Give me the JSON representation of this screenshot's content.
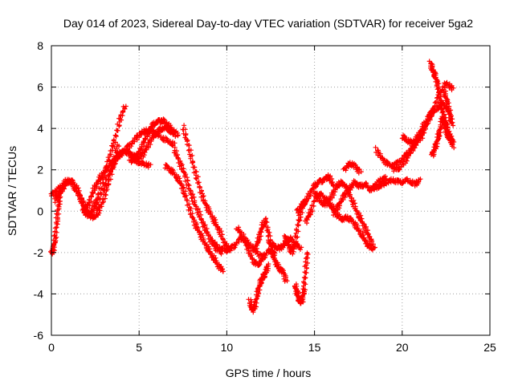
{
  "chart_data": {
    "type": "scatter",
    "title": "Day 014 of 2023, Sidereal Day-to-day VTEC variation (SDTVAR) for receiver 5ga2",
    "xlabel": "GPS time / hours",
    "ylabel": "SDTVAR / TECUs",
    "xlim": [
      0,
      25
    ],
    "ylim": [
      -6,
      8
    ],
    "xticks": [
      "0",
      "5",
      "10",
      "15",
      "20",
      "25"
    ],
    "yticks": [
      "-6",
      "-4",
      "-2",
      "0",
      "2",
      "4",
      "6",
      "8"
    ],
    "grid": true,
    "marker": "+",
    "color": "#ff0000",
    "series": [
      {
        "name": "trace-1",
        "x": [
          0.0,
          0.1,
          0.2,
          0.3,
          0.4,
          0.5
        ],
        "y": [
          -2.0,
          -1.9,
          -1.4,
          -0.6,
          0.2,
          0.9
        ]
      },
      {
        "name": "trace-2",
        "x": [
          0.0,
          0.3,
          0.6,
          0.9,
          1.2,
          1.5,
          1.8,
          2.0,
          2.3,
          2.6,
          3.0,
          3.3,
          3.6,
          3.9,
          4.2
        ],
        "y": [
          0.8,
          1.0,
          1.2,
          1.5,
          1.3,
          0.9,
          0.3,
          -0.2,
          0.0,
          0.6,
          1.6,
          2.6,
          3.4,
          4.4,
          5.1
        ]
      },
      {
        "name": "trace-3",
        "x": [
          0.2,
          0.5,
          0.8,
          1.1,
          1.4,
          1.7,
          2.0,
          2.3,
          2.6,
          2.9,
          3.2,
          3.5,
          3.8
        ],
        "y": [
          0.5,
          0.9,
          1.3,
          1.5,
          1.2,
          0.6,
          0.0,
          -0.3,
          -0.2,
          0.4,
          1.2,
          2.2,
          3.2
        ]
      },
      {
        "name": "trace-4",
        "x": [
          1.8,
          2.1,
          2.4,
          2.7,
          3.0,
          3.3,
          3.6,
          3.9,
          4.2,
          4.5,
          4.8,
          5.1,
          5.4,
          5.7,
          6.0,
          6.3,
          6.6,
          7.0
        ],
        "y": [
          0.0,
          0.3,
          1.0,
          1.5,
          1.9,
          2.2,
          2.5,
          2.8,
          2.9,
          2.8,
          2.6,
          2.6,
          3.0,
          3.5,
          3.8,
          4.0,
          4.0,
          3.7
        ]
      },
      {
        "name": "trace-5",
        "x": [
          2.2,
          2.6,
          3.0,
          3.4,
          3.8,
          4.2,
          4.6,
          5.0,
          5.4,
          5.8,
          6.2,
          6.6,
          7.0
        ],
        "y": [
          -0.2,
          0.3,
          1.2,
          2.0,
          2.6,
          3.0,
          3.3,
          3.7,
          3.9,
          3.9,
          3.6,
          3.4,
          3.2
        ]
      },
      {
        "name": "trace-6",
        "x": [
          4.5,
          4.8,
          5.1,
          5.4,
          5.7,
          6.0,
          6.3,
          6.6,
          6.9,
          7.2
        ],
        "y": [
          2.4,
          2.6,
          3.0,
          3.6,
          4.1,
          4.3,
          4.4,
          4.2,
          3.9,
          3.7
        ]
      },
      {
        "name": "trace-7",
        "x": [
          4.5,
          4.8,
          5.2,
          5.6
        ],
        "y": [
          2.6,
          2.4,
          2.3,
          2.2
        ]
      },
      {
        "name": "trace-8",
        "x": [
          6.5,
          6.8,
          7.1,
          7.4,
          7.7,
          8.0,
          8.3,
          8.6,
          8.9,
          9.2,
          9.5,
          9.8
        ],
        "y": [
          2.2,
          2.0,
          1.7,
          1.3,
          0.6,
          -0.2,
          -0.8,
          -1.3,
          -1.8,
          -2.2,
          -2.6,
          -2.9
        ]
      },
      {
        "name": "trace-9",
        "x": [
          7.0,
          7.3,
          7.6,
          7.9,
          8.2,
          8.5,
          8.8,
          9.1,
          9.4,
          9.7
        ],
        "y": [
          3.0,
          2.4,
          1.8,
          1.0,
          0.3,
          -0.3,
          -0.9,
          -1.4,
          -1.8,
          -2.0
        ]
      },
      {
        "name": "trace-10",
        "x": [
          7.5,
          7.8,
          8.1,
          8.4,
          8.7,
          9.0,
          9.3,
          9.6,
          9.9,
          10.2
        ],
        "y": [
          4.1,
          3.2,
          2.2,
          1.3,
          0.5,
          0.0,
          -0.5,
          -1.0,
          -1.6,
          -1.9
        ]
      },
      {
        "name": "trace-11",
        "x": [
          9.2,
          9.6,
          10.0,
          10.4,
          10.8,
          11.2,
          11.6,
          12.0
        ],
        "y": [
          -1.5,
          -1.8,
          -1.9,
          -1.7,
          -1.3,
          -1.5,
          -1.9,
          -2.2
        ]
      },
      {
        "name": "trace-12",
        "x": [
          10.6,
          10.9,
          11.2,
          11.5,
          11.8,
          12.1,
          12.4,
          12.7
        ],
        "y": [
          -0.8,
          -1.2,
          -1.8,
          -2.4,
          -2.6,
          -2.2,
          -1.9,
          -2.1
        ]
      },
      {
        "name": "trace-13",
        "x": [
          11.3,
          11.45,
          11.6,
          11.75,
          11.9,
          12.05,
          12.2,
          12.35
        ],
        "y": [
          -4.3,
          -4.8,
          -4.6,
          -4.0,
          -3.5,
          -3.2,
          -3.0,
          -2.6
        ]
      },
      {
        "name": "trace-14",
        "x": [
          11.6,
          11.8,
          12.0,
          12.2,
          12.4,
          12.6,
          12.8,
          13.0,
          13.2,
          13.4
        ],
        "y": [
          -1.9,
          -1.4,
          -0.8,
          -0.4,
          -1.2,
          -2.0,
          -2.5,
          -2.8,
          -2.9,
          -3.4
        ]
      },
      {
        "name": "trace-15",
        "x": [
          12.4,
          12.7,
          13.0,
          13.3,
          13.6,
          13.9,
          14.2
        ],
        "y": [
          -1.5,
          -1.7,
          -1.8,
          -1.6,
          -1.3,
          -1.6,
          -1.8
        ]
      },
      {
        "name": "trace-16",
        "x": [
          13.3,
          13.5,
          13.7,
          13.9,
          14.1,
          14.3,
          14.5
        ],
        "y": [
          -1.2,
          -1.6,
          -2.0,
          -1.5,
          -0.5,
          0.2,
          0.5
        ]
      },
      {
        "name": "trace-17",
        "x": [
          13.9,
          14.0,
          14.1,
          14.2,
          14.3,
          14.4,
          14.5,
          14.6
        ],
        "y": [
          -3.6,
          -3.9,
          -4.2,
          -4.4,
          -4.3,
          -3.8,
          -2.8,
          -2.0
        ]
      },
      {
        "name": "trace-18",
        "x": [
          14.0,
          14.3,
          14.6,
          14.9,
          15.2,
          15.5,
          15.8,
          16.1
        ],
        "y": [
          0.0,
          0.3,
          0.6,
          1.1,
          1.4,
          1.5,
          1.7,
          1.2
        ]
      },
      {
        "name": "trace-19",
        "x": [
          14.5,
          14.8,
          15.1,
          15.4,
          15.7,
          16.0,
          16.3,
          16.6,
          16.9,
          17.2,
          17.5,
          17.8,
          18.1,
          18.4
        ],
        "y": [
          -0.5,
          0.0,
          0.8,
          0.8,
          0.5,
          0.2,
          -0.2,
          -0.4,
          -0.3,
          -0.5,
          -0.9,
          -1.3,
          -1.7,
          -1.8
        ]
      },
      {
        "name": "trace-20",
        "x": [
          15.0,
          15.3,
          15.6,
          15.9,
          16.2,
          16.5,
          16.8,
          17.1,
          17.4,
          17.7,
          18.0,
          18.3
        ],
        "y": [
          0.9,
          0.5,
          0.3,
          0.6,
          1.1,
          1.4,
          1.2,
          0.6,
          0.0,
          -0.5,
          -1.0,
          -1.6
        ]
      },
      {
        "name": "trace-21",
        "x": [
          16.1,
          16.4,
          16.7,
          17.0,
          17.3,
          17.6,
          17.9,
          18.2,
          18.5,
          18.8,
          19.1
        ],
        "y": [
          -0.1,
          0.3,
          0.8,
          1.1,
          1.4,
          1.2,
          1.3,
          1.0,
          1.3,
          1.5,
          1.6
        ]
      },
      {
        "name": "trace-22",
        "x": [
          16.7,
          17.0,
          17.3,
          17.6
        ],
        "y": [
          2.0,
          2.3,
          2.2,
          1.9
        ]
      },
      {
        "name": "trace-23",
        "x": [
          18.3,
          18.7,
          19.1,
          19.5,
          19.9,
          20.3,
          20.7,
          21.0
        ],
        "y": [
          1.1,
          1.2,
          1.4,
          1.5,
          1.4,
          1.5,
          1.3,
          1.5
        ]
      },
      {
        "name": "trace-24",
        "x": [
          18.5,
          18.9,
          19.3,
          19.7,
          20.1,
          20.5,
          20.9,
          21.3,
          21.7,
          22.1,
          22.5,
          22.9
        ],
        "y": [
          3.0,
          2.5,
          2.2,
          2.3,
          2.6,
          3.0,
          3.4,
          4.0,
          4.8,
          5.6,
          6.2,
          5.9
        ]
      },
      {
        "name": "trace-25",
        "x": [
          19.5,
          19.9,
          20.3,
          20.7,
          21.1,
          21.5,
          21.9,
          22.3,
          22.7
        ],
        "y": [
          2.0,
          2.1,
          2.6,
          3.2,
          3.6,
          4.5,
          4.9,
          5.2,
          4.8
        ]
      },
      {
        "name": "trace-26",
        "x": [
          20.0,
          20.3,
          20.6,
          20.9,
          21.2,
          21.5,
          21.8
        ],
        "y": [
          3.6,
          3.4,
          3.3,
          3.6,
          4.1,
          4.5,
          5.0
        ]
      },
      {
        "name": "trace-27",
        "x": [
          21.6,
          21.75,
          21.9,
          22.05,
          22.2,
          22.35,
          22.5,
          22.7,
          22.9
        ],
        "y": [
          7.2,
          6.8,
          6.5,
          6.0,
          5.2,
          4.6,
          4.2,
          3.7,
          3.1
        ]
      },
      {
        "name": "trace-28",
        "x": [
          21.7,
          21.85,
          22.0,
          22.15,
          22.3,
          22.45,
          22.6,
          22.75,
          22.9
        ],
        "y": [
          2.7,
          3.0,
          3.4,
          3.9,
          4.5,
          4.1,
          3.6,
          3.5,
          3.3
        ]
      },
      {
        "name": "trace-29",
        "x": [
          22.4,
          22.55,
          22.7,
          22.85
        ],
        "y": [
          5.8,
          5.3,
          4.7,
          4.2
        ]
      }
    ]
  }
}
